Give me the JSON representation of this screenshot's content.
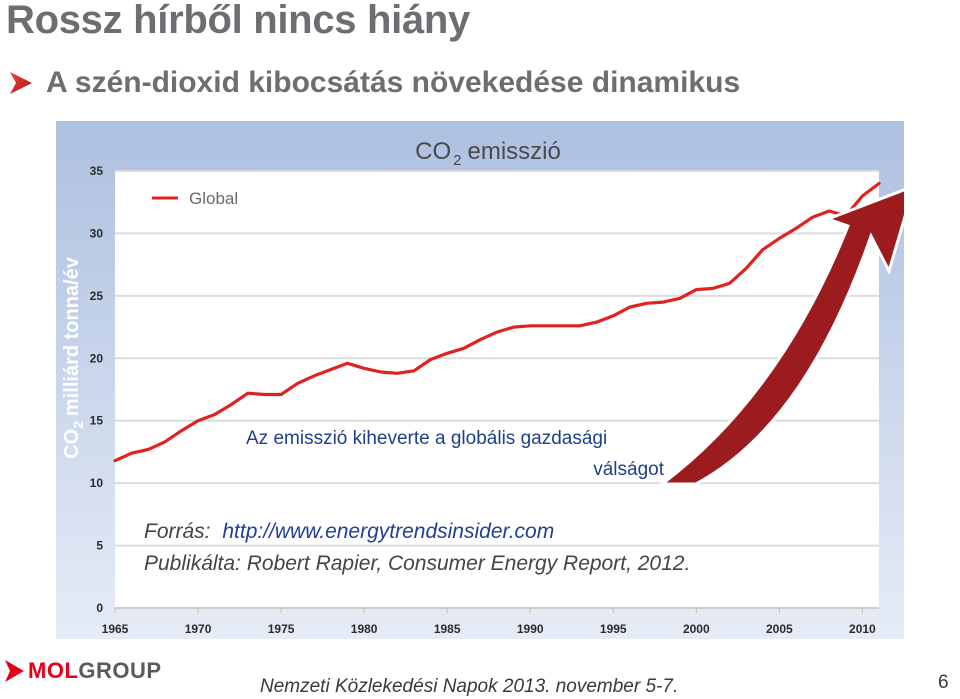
{
  "header": {
    "title": "Rossz hírből nincs hiány",
    "subtitle": "A szén-dioxid kibocsátás növekedése dinamikus"
  },
  "chart_data": {
    "type": "line",
    "title": "CO 2 emisszió",
    "ylabel": "CO 2 milliárd tonna/év",
    "xlabel": "",
    "xlim": [
      1965,
      2011
    ],
    "ylim": [
      0,
      35
    ],
    "xticks": [
      1965,
      1970,
      1975,
      1980,
      1985,
      1990,
      1995,
      2000,
      2005,
      2010
    ],
    "yticks": [
      0,
      5,
      10,
      15,
      20,
      25,
      30,
      35
    ],
    "grid": true,
    "legend_position": "top-left",
    "series": [
      {
        "name": "Global",
        "color": "#e0231f",
        "x": [
          1965,
          1966,
          1967,
          1968,
          1969,
          1970,
          1971,
          1972,
          1973,
          1974,
          1975,
          1976,
          1977,
          1978,
          1979,
          1980,
          1981,
          1982,
          1983,
          1984,
          1985,
          1986,
          1987,
          1988,
          1989,
          1990,
          1991,
          1992,
          1993,
          1994,
          1995,
          1996,
          1997,
          1998,
          1999,
          2000,
          2001,
          2002,
          2003,
          2004,
          2005,
          2006,
          2007,
          2008,
          2009,
          2010,
          2011
        ],
        "values": [
          11.8,
          12.4,
          12.7,
          13.3,
          14.2,
          15.0,
          15.5,
          16.3,
          17.2,
          17.1,
          17.1,
          18.0,
          18.6,
          19.1,
          19.6,
          19.2,
          18.9,
          18.8,
          19.0,
          19.9,
          20.4,
          20.8,
          21.5,
          22.1,
          22.5,
          22.6,
          22.6,
          22.6,
          22.6,
          22.9,
          23.4,
          24.1,
          24.4,
          24.5,
          24.8,
          25.5,
          25.6,
          26.0,
          27.2,
          28.7,
          29.6,
          30.4,
          31.3,
          31.8,
          31.4,
          33.0,
          34.0
        ]
      }
    ],
    "annotations": {
      "crisis_line1": "Az emisszió kiheverte a globális gazdasági",
      "crisis_line2": "válságot",
      "source_label": "Forrás:",
      "source_url": "http://www.energytrendsinsider.com",
      "publisher": "Publikálta: Robert Rapier, Consumer Energy Report, 2012."
    },
    "colors": {
      "plot_bg": "#ffffff",
      "frame_bg_top": "#adc0e0",
      "frame_bg_bottom": "#e6ecf6",
      "arrow": "#9b1b1f",
      "axis_text": "#2b2b2b",
      "ylabel_text": "#ffffff",
      "title_text": "#4a4a4a",
      "annotation_text": "#1f3f8a",
      "url_text": "#1f3f9a"
    }
  },
  "footer": {
    "event": "Nemzeti Közlekedési Napok 2013. november 5-7.",
    "page": "6",
    "logo_mol": "MOL",
    "logo_group": "GROUP"
  },
  "icons": [
    "bullet-arrow-icon",
    "mol-logo-icon"
  ]
}
